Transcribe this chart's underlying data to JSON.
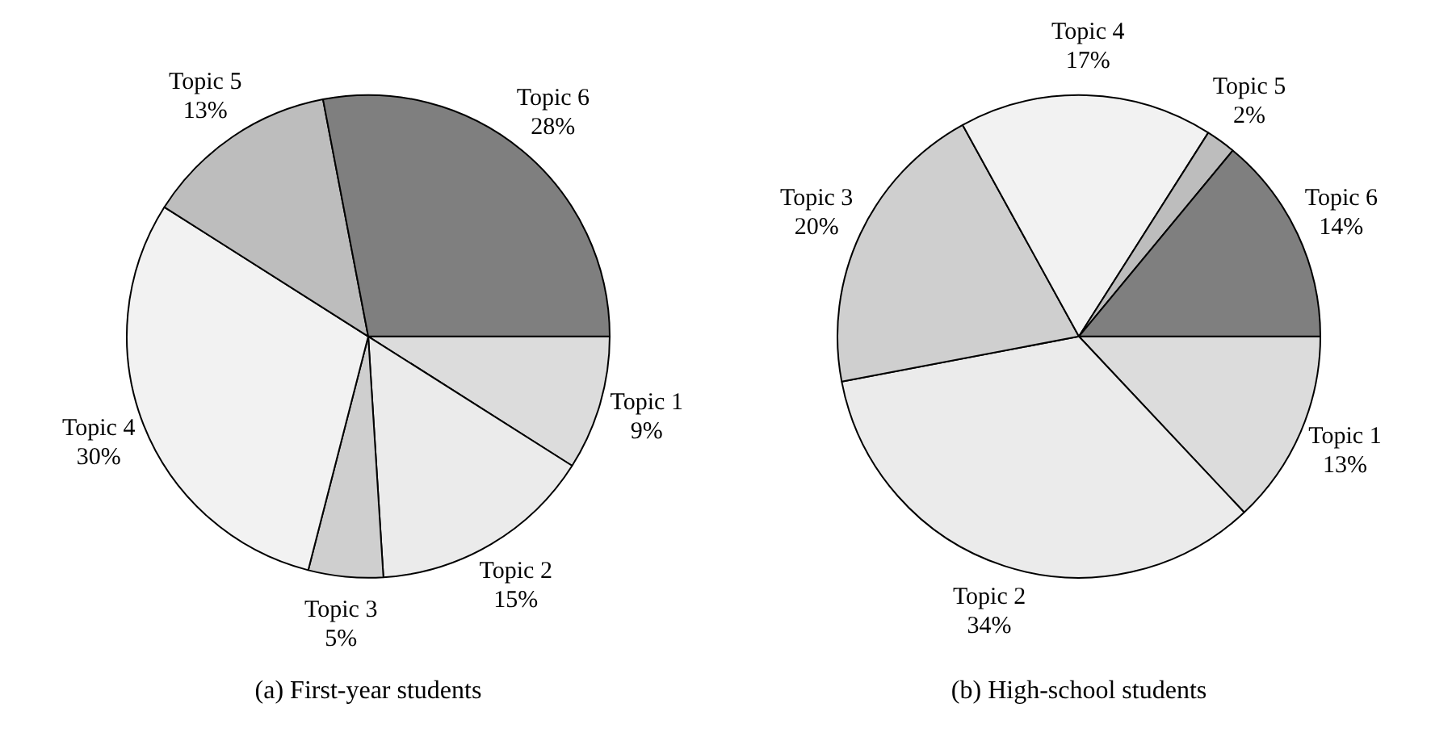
{
  "chart_data": [
    {
      "type": "pie",
      "title": "(a) First-year students",
      "categories": [
        "Topic 1",
        "Topic 2",
        "Topic 3",
        "Topic 4",
        "Topic 5",
        "Topic 6"
      ],
      "values": [
        9,
        15,
        5,
        30,
        13,
        28
      ],
      "value_labels": [
        "9%",
        "15%",
        "5%",
        "30%",
        "13%",
        "28%"
      ],
      "colors": [
        "#dcdcdc",
        "#ebebeb",
        "#cfcfcf",
        "#f2f2f2",
        "#bdbdbd",
        "#7f7f7f"
      ],
      "legend": false
    },
    {
      "type": "pie",
      "title": "(b) High-school students",
      "categories": [
        "Topic 1",
        "Topic 2",
        "Topic 3",
        "Topic 4",
        "Topic 5",
        "Topic 6"
      ],
      "values": [
        13,
        34,
        20,
        17,
        2,
        14
      ],
      "value_labels": [
        "13%",
        "34%",
        "20%",
        "17%",
        "2%",
        "14%"
      ],
      "colors": [
        "#dcdcdc",
        "#ebebeb",
        "#cfcfcf",
        "#f2f2f2",
        "#bdbdbd",
        "#7f7f7f"
      ],
      "legend": false
    }
  ]
}
